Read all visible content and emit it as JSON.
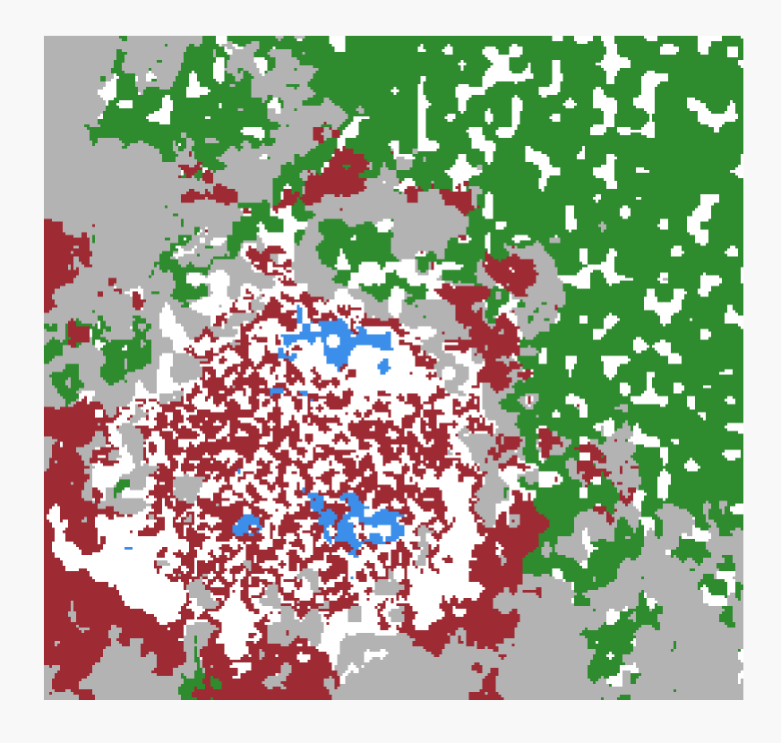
{
  "map": {
    "type": "categorical-raster",
    "title": "",
    "legend": [],
    "classes": [
      {
        "id": 0,
        "name": "white",
        "color": "#ffffff"
      },
      {
        "id": 1,
        "name": "gray",
        "color": "#b3b3b3"
      },
      {
        "id": 2,
        "name": "dark-red",
        "color": "#9e2b33"
      },
      {
        "id": 3,
        "name": "green",
        "color": "#2e8b2e"
      },
      {
        "id": 4,
        "name": "blue",
        "color": "#3b8eea"
      }
    ],
    "background_color": "#f8f8f8"
  }
}
